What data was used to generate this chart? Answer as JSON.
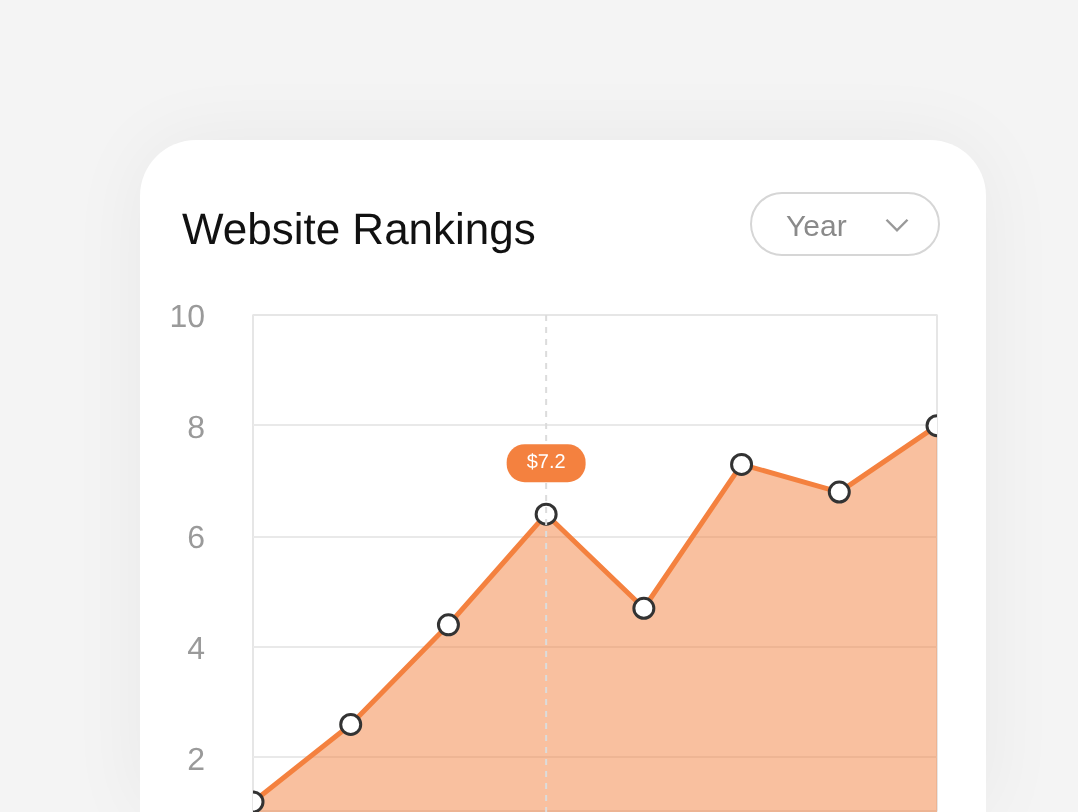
{
  "chart_data": {
    "type": "area",
    "title": "Website Rankings",
    "categories": [
      null,
      null,
      null,
      null,
      null,
      null,
      null,
      null
    ],
    "series": [
      {
        "color": "#f4813f",
        "values": [
          1.2,
          2.6,
          4.4,
          6.4,
          4.7,
          7.3,
          6.8,
          8.0
        ]
      }
    ],
    "ylim": [
      1,
      10
    ],
    "yticks": [
      2,
      4,
      6,
      8,
      10
    ],
    "grid": "y",
    "marker": "circle",
    "annotations": [
      "Year",
      {
        "text": "$7.2",
        "y": 6.4
      }
    ]
  }
}
